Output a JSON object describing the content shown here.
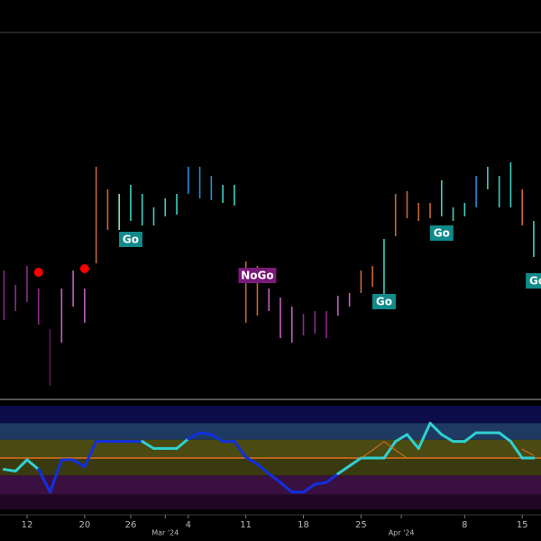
{
  "chart_data": [
    {
      "type": "range",
      "xlim": [
        -2.35,
        44.63
      ],
      "ylim": [
        0,
        405
      ],
      "x": [
        -2,
        -1,
        0,
        1,
        2,
        3,
        4,
        5,
        6,
        7,
        8,
        9,
        10,
        11,
        12,
        13,
        14,
        15,
        16,
        17,
        18,
        19,
        20,
        21,
        22,
        23,
        24,
        25,
        26,
        27,
        28,
        29,
        30,
        31,
        32,
        33,
        34,
        35,
        36,
        37,
        38,
        39,
        40,
        41,
        42,
        43,
        44
      ],
      "highs": [
        140,
        124,
        145,
        120,
        75,
        120,
        140,
        120,
        255,
        230,
        225,
        235,
        225,
        210,
        220,
        225,
        255,
        255,
        245,
        235,
        235,
        150,
        145,
        120,
        110,
        100,
        92,
        95,
        95,
        112,
        115,
        140,
        145,
        175,
        225,
        228,
        215,
        215,
        240,
        210,
        215,
        245,
        255,
        245,
        260,
        230,
        195
      ],
      "lows": [
        85,
        95,
        105,
        80,
        12,
        60,
        100,
        82,
        148,
        185,
        185,
        195,
        190,
        190,
        200,
        202,
        225,
        220,
        218,
        215,
        212,
        82,
        90,
        95,
        65,
        60,
        68,
        70,
        65,
        90,
        100,
        115,
        122,
        100,
        178,
        198,
        195,
        198,
        200,
        195,
        200,
        210,
        230,
        210,
        210,
        190,
        155
      ],
      "colors": [
        "#8b2a8b",
        "#8b2a8b",
        "#8b2a8b",
        "#8b2a8b",
        "#5a1a5a",
        "#c060c0",
        "#c060c0",
        "#c060c0",
        "#c8682a",
        "#c8682a",
        "#7fe0d0",
        "#3fd0c0",
        "#3fd0c0",
        "#3fd0c0",
        "#3fd0c0",
        "#3fd0c0",
        "#1a8fd8",
        "#1a8fd8",
        "#1a8fd8",
        "#3fd0c0",
        "#3fd0c0",
        "#c8682a",
        "#c8682a",
        "#c060c0",
        "#c060c0",
        "#c060c0",
        "#8b2a8b",
        "#8b2a8b",
        "#8b2a8b",
        "#c060c0",
        "#c060c0",
        "#c8682a",
        "#c8682a",
        "#3fd0c0",
        "#c8682a",
        "#c8682a",
        "#c8682a",
        "#c8682a",
        "#3fd0c0",
        "#3fd0c0",
        "#3fd0c0",
        "#1a8fd8",
        "#3fd0c0",
        "#3fd0c0",
        "#3fd0c0",
        "#c8682a",
        "#3fd0c0"
      ],
      "annotations": [
        {
          "text": "Go",
          "x": 9,
          "y": 175,
          "color": "#118a8a"
        },
        {
          "text": "NoGo",
          "x": 20,
          "y": 135,
          "color": "#7a1a7a"
        },
        {
          "text": "Go",
          "x": 31,
          "y": 106,
          "color": "#118a8a"
        },
        {
          "text": "Go",
          "x": 36,
          "y": 182,
          "color": "#118a8a"
        },
        {
          "text": "Go",
          "x": 44,
          "y": 129,
          "color": "#118a8a"
        }
      ],
      "markers": {
        "x": [
          1,
          5
        ],
        "y": [
          138,
          142
        ],
        "color": "#ff0000"
      }
    },
    {
      "type": "line",
      "xlim": [
        -2.35,
        44.63
      ],
      "ylim": [
        -6,
        6
      ],
      "bands": [
        {
          "from": 6,
          "to": 4,
          "color": "#0c0c48"
        },
        {
          "from": 4,
          "to": 2.1,
          "color": "#1e3a62"
        },
        {
          "from": 2.1,
          "to": 0,
          "color": "#4a4a12"
        },
        {
          "from": 0,
          "to": -2,
          "color": "#3a3a10"
        },
        {
          "from": -2,
          "to": -4.2,
          "color": "#3a1040"
        },
        {
          "from": -4.2,
          "to": -5.9,
          "color": "#200825"
        }
      ],
      "reference_line": {
        "value": 0,
        "color": "#e07020"
      },
      "x": [
        -2,
        -1,
        0,
        1,
        2,
        3,
        4,
        5,
        6,
        7,
        8,
        9,
        10,
        11,
        12,
        13,
        14,
        15,
        16,
        17,
        18,
        19,
        20,
        21,
        22,
        23,
        24,
        25,
        26,
        27,
        28,
        29,
        30,
        31,
        32,
        33,
        34,
        35,
        36,
        37,
        38,
        39,
        40,
        41,
        42,
        43,
        44
      ],
      "series": [
        {
          "values": [
            -1.3,
            -1.5,
            -0.2,
            -1.3,
            -3.9,
            -0.2,
            -0.2,
            -1.0,
            1.9,
            1.9,
            1.9,
            1.9,
            1.9,
            1.1,
            1.1,
            1.1,
            2.2,
            2.9,
            2.7,
            1.9,
            1.9,
            0.1,
            -0.7,
            -1.8,
            -2.8,
            -3.9,
            -3.9,
            -3.0,
            -2.8,
            -1.8,
            -0.9,
            0,
            0,
            0,
            1.9,
            2.7,
            1.1,
            4.0,
            2.7,
            1.9,
            1.9,
            2.9,
            2.9,
            2.9,
            1.9,
            0,
            0
          ],
          "point_colors": [
            "#30d0d0",
            "#30d0d0",
            "#30d0d0",
            "#30d0d0",
            "#1030e0",
            "#1030e0",
            "#1030e0",
            "#1030e0",
            "#1030e0",
            "#1030e0",
            "#1030e0",
            "#1030e0",
            "#1030e0",
            "#30d0d0",
            "#30d0d0",
            "#30d0d0",
            "#30d0d0",
            "#1030e0",
            "#1030e0",
            "#1030e0",
            "#1030e0",
            "#1030e0",
            "#1030e0",
            "#1030e0",
            "#1030e0",
            "#1030e0",
            "#1030e0",
            "#1030e0",
            "#1030e0",
            "#1030e0",
            "#30d0d0",
            "#30d0d0",
            "#30d0d0",
            "#30d0d0",
            "#30d0d0",
            "#30d0d0",
            "#30d0d0",
            "#30d0d0",
            "#30d0d0",
            "#30d0d0",
            "#30d0d0",
            "#30d0d0",
            "#30d0d0",
            "#30d0d0",
            "#30d0d0",
            "#30d0d0",
            "#30d0d0"
          ],
          "width": 3
        },
        {
          "values": [
            null,
            null,
            null,
            null,
            null,
            null,
            null,
            null,
            null,
            null,
            null,
            null,
            null,
            null,
            null,
            null,
            null,
            null,
            null,
            null,
            null,
            null,
            null,
            null,
            null,
            null,
            null,
            null,
            null,
            null,
            null,
            0,
            0.9,
            1.9,
            0.9,
            0,
            null,
            null,
            null,
            null,
            null,
            null,
            null,
            null,
            null,
            1.0,
            0.3
          ],
          "color": "#e07020",
          "width": 1
        }
      ],
      "xticks": [
        {
          "value": 0,
          "label": "12"
        },
        {
          "value": 5,
          "label": "20"
        },
        {
          "value": 9,
          "label": "26"
        },
        {
          "value": 12,
          "label": "Mar '24"
        },
        {
          "value": 14,
          "label": "4"
        },
        {
          "value": 19,
          "label": "11"
        },
        {
          "value": 24,
          "label": "18"
        },
        {
          "value": 29,
          "label": "25"
        },
        {
          "value": 32.5,
          "label": "Apr '24"
        },
        {
          "value": 38,
          "label": "8"
        },
        {
          "value": 43,
          "label": "15"
        }
      ]
    }
  ]
}
